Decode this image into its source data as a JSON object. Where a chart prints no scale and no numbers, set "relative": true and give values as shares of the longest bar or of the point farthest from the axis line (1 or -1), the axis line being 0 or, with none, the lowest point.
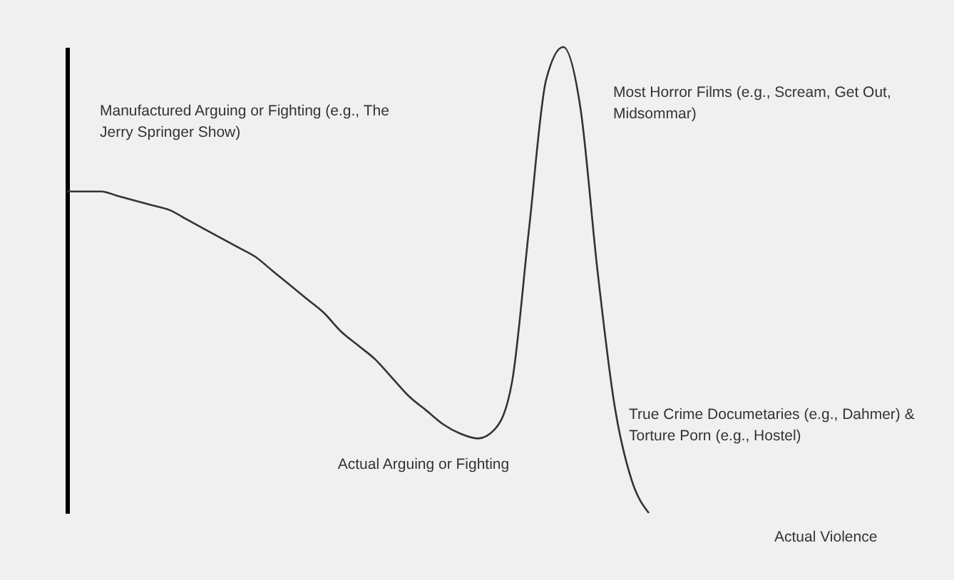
{
  "chart_data": {
    "type": "line",
    "relative": true,
    "categories": [
      null,
      null,
      null,
      null,
      null,
      null,
      null,
      null,
      null,
      null,
      null,
      null,
      null,
      null,
      null,
      null,
      null,
      null,
      null,
      null,
      null,
      null,
      null,
      null,
      null,
      null,
      null,
      null,
      null,
      null,
      null,
      null,
      null,
      null,
      null
    ],
    "series": [
      {
        "color": "#333333",
        "values": [
          0.69,
          0.69,
          0.69,
          0.68,
          0.67,
          0.66,
          0.65,
          0.63,
          0.61,
          0.59,
          0.57,
          0.55,
          0.52,
          0.49,
          0.46,
          0.43,
          0.39,
          0.36,
          0.33,
          0.29,
          0.25,
          0.22,
          0.19,
          0.17,
          0.16,
          0.18,
          0.28,
          0.61,
          0.93,
          1.0,
          0.87,
          0.52,
          0.23,
          0.07,
          0.0
        ]
      }
    ],
    "annotations": [
      "Manufactured Arguing or Fighting (e.g., The\nJerry Springer Show)",
      "Actual Arguing or Fighting",
      "Most Horror Films (e.g., Scream, Get Out,\nMidsommar)",
      "True Crime Documetaries (e.g., Dahmer) &\nTorture Porn (e.g., Hostel)",
      "Actual Violence"
    ],
    "grid": false,
    "legend": false,
    "tick_labels": false,
    "line_style": "solid",
    "marker": "none"
  }
}
